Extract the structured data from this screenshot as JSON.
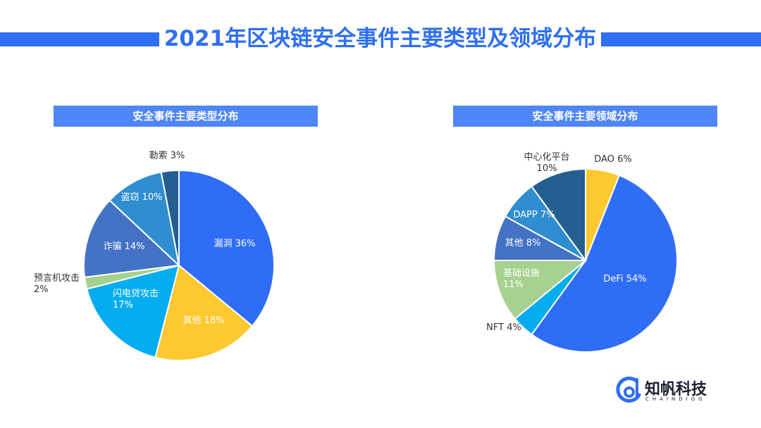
{
  "page": {
    "title": "2021年区块链安全事件主要类型及领域分布"
  },
  "chart_data": [
    {
      "type": "pie",
      "title": "安全事件主要类型分布",
      "slices": [
        {
          "label": "漏洞",
          "value": 36,
          "display": "漏洞 36%",
          "color": "#2f6df6",
          "labelColor": "#ffffff"
        },
        {
          "label": "其他",
          "value": 18,
          "display": "其他 18%",
          "color": "#fec930",
          "labelColor": "#ffffff"
        },
        {
          "label": "闪电贷攻击",
          "value": 17,
          "display": "闪电贷攻击\n17%",
          "color": "#05adf0",
          "labelColor": "#ffffff"
        },
        {
          "label": "预言机攻击",
          "value": 2,
          "display": "预言机攻击\n2%",
          "color": "#a6d18f",
          "labelColor": "#333333"
        },
        {
          "label": "诈骗",
          "value": 14,
          "display": "诈骗 14%",
          "color": "#4472c4",
          "labelColor": "#ffffff"
        },
        {
          "label": "盗窃",
          "value": 10,
          "display": "盗窃 10%",
          "color": "#2f8ed0",
          "labelColor": "#ffffff"
        },
        {
          "label": "勒索",
          "value": 3,
          "display": "勒索 3%",
          "color": "#235f90",
          "labelColor": "#333333"
        }
      ]
    },
    {
      "type": "pie",
      "title": "安全事件主要领域分布",
      "slices": [
        {
          "label": "DAO",
          "value": 6,
          "display": "DAO 6%",
          "color": "#fec930",
          "labelColor": "#333333"
        },
        {
          "label": "DeFi",
          "value": 54,
          "display": "DeFi 54%",
          "color": "#2f6df6",
          "labelColor": "#ffffff"
        },
        {
          "label": "NFT",
          "value": 4,
          "display": "NFT 4%",
          "color": "#05adf0",
          "labelColor": "#333333"
        },
        {
          "label": "基础设施",
          "value": 11,
          "display": "基础设施\n11%",
          "color": "#a6d18f",
          "labelColor": "#ffffff"
        },
        {
          "label": "其他",
          "value": 8,
          "display": "其他 8%",
          "color": "#4472c4",
          "labelColor": "#ffffff"
        },
        {
          "label": "DAPP",
          "value": 7,
          "display": "DAPP 7%",
          "color": "#2f8ed0",
          "labelColor": "#ffffff"
        },
        {
          "label": "中心化平台",
          "value": 10,
          "display": "中心化平台\n10%",
          "color": "#235f90",
          "labelColor": "#333333"
        }
      ]
    }
  ],
  "logo": {
    "name": "知帆科技",
    "subtitle": "CHAINDIGG",
    "color": "#2f6df6"
  }
}
